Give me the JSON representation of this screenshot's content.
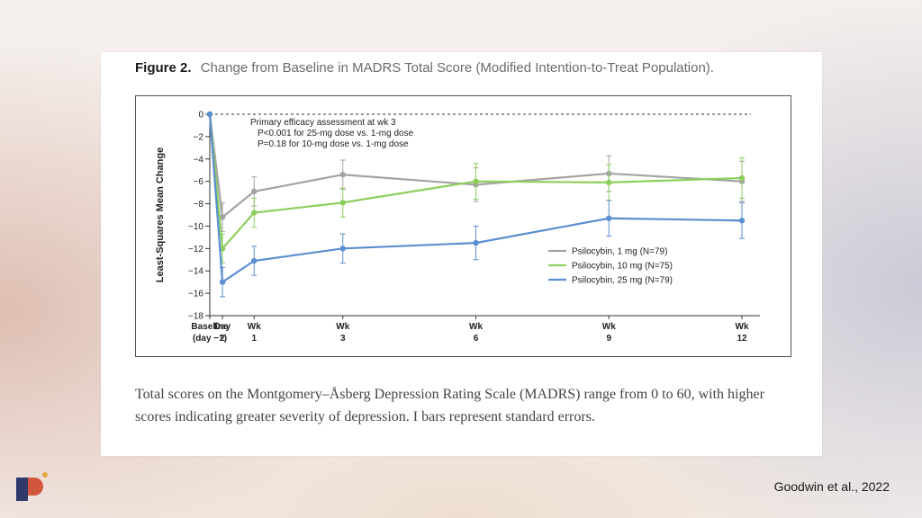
{
  "figure": {
    "label": "Figure 2.",
    "title": "Change from Baseline in MADRS Total Score (Modified Intention-to-Treat Population)."
  },
  "caption": "Total scores on the Montgomery–Åsberg Depression Rating Scale (MADRS) range from 0 to 60, with higher scores indicating greater severity of depression. I bars represent standard errors.",
  "citation": "Goodwin et al., 2022",
  "chart_data": {
    "type": "line",
    "ylabel": "Least-Squares Mean Change",
    "ylim": [
      -18,
      0
    ],
    "yticks": [
      0,
      -2,
      -4,
      -6,
      -8,
      -10,
      -12,
      -14,
      -16,
      -18
    ],
    "x": [
      0,
      2,
      7,
      21,
      42,
      63,
      84
    ],
    "xticks": [
      {
        "x": 0,
        "line1": "Baseline",
        "line2": "(day −1)"
      },
      {
        "x": 2,
        "line1": "Day",
        "line2": "2"
      },
      {
        "x": 7,
        "line1": "Wk",
        "line2": "1"
      },
      {
        "x": 21,
        "line1": "Wk",
        "line2": "3"
      },
      {
        "x": 42,
        "line1": "Wk",
        "line2": "6"
      },
      {
        "x": 63,
        "line1": "Wk",
        "line2": "9"
      },
      {
        "x": 84,
        "line1": "Wk",
        "line2": "12"
      }
    ],
    "annotation": [
      "Primary efficacy assessment at wk 3",
      "P<0.001 for 25-mg dose vs. 1-mg dose",
      "P=0.18 for 10-mg dose vs. 1-mg dose"
    ],
    "series": [
      {
        "name": "Psilocybin, 1 mg (N=79)",
        "color": "#a3a3a3",
        "values": [
          0,
          -9.2,
          -6.9,
          -5.4,
          -6.3,
          -5.3,
          -6.0
        ],
        "se": [
          0,
          1.3,
          1.3,
          1.3,
          1.5,
          1.6,
          1.8
        ]
      },
      {
        "name": "Psilocybin, 10 mg (N=75)",
        "color": "#8ccf5d",
        "values": [
          0,
          -12.0,
          -8.8,
          -7.9,
          -6.0,
          -6.1,
          -5.7
        ],
        "se": [
          0,
          1.3,
          1.3,
          1.3,
          1.6,
          1.6,
          1.8
        ]
      },
      {
        "name": "Psilocybin, 25 mg (N=79)",
        "color": "#5b8fd1",
        "values": [
          0,
          -15.0,
          -13.1,
          -12.0,
          -11.5,
          -9.3,
          -9.5
        ],
        "se": [
          0,
          1.3,
          1.3,
          1.3,
          1.5,
          1.6,
          1.6
        ]
      }
    ],
    "legend_position": "bottom-right",
    "reference_line": 0
  }
}
